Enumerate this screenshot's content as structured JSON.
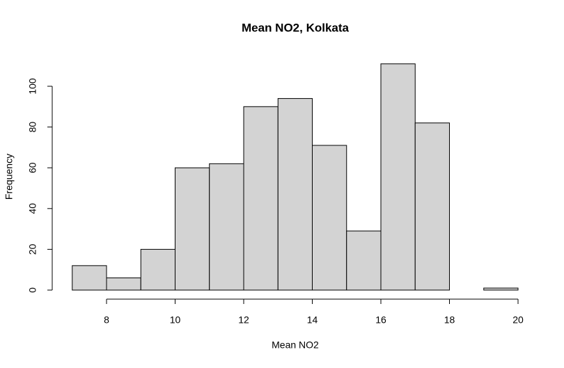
{
  "chart_data": {
    "type": "histogram",
    "title": "Mean NO2, Kolkata",
    "x_label": "Mean NO2",
    "y_label": "Frequency",
    "bins": [
      7,
      8,
      9,
      10,
      11,
      12,
      13,
      14,
      15,
      16,
      17,
      18,
      19,
      20
    ],
    "values": [
      12,
      6,
      20,
      60,
      62,
      90,
      94,
      71,
      29,
      111,
      82,
      0,
      1
    ],
    "color": "#d3d3d3",
    "xlim": [
      7,
      20
    ],
    "xticks": [
      8,
      10,
      12,
      14,
      16,
      18,
      20
    ],
    "ylim": [
      0,
      115
    ],
    "yticks": [
      0,
      20,
      40,
      60,
      80,
      100
    ]
  }
}
